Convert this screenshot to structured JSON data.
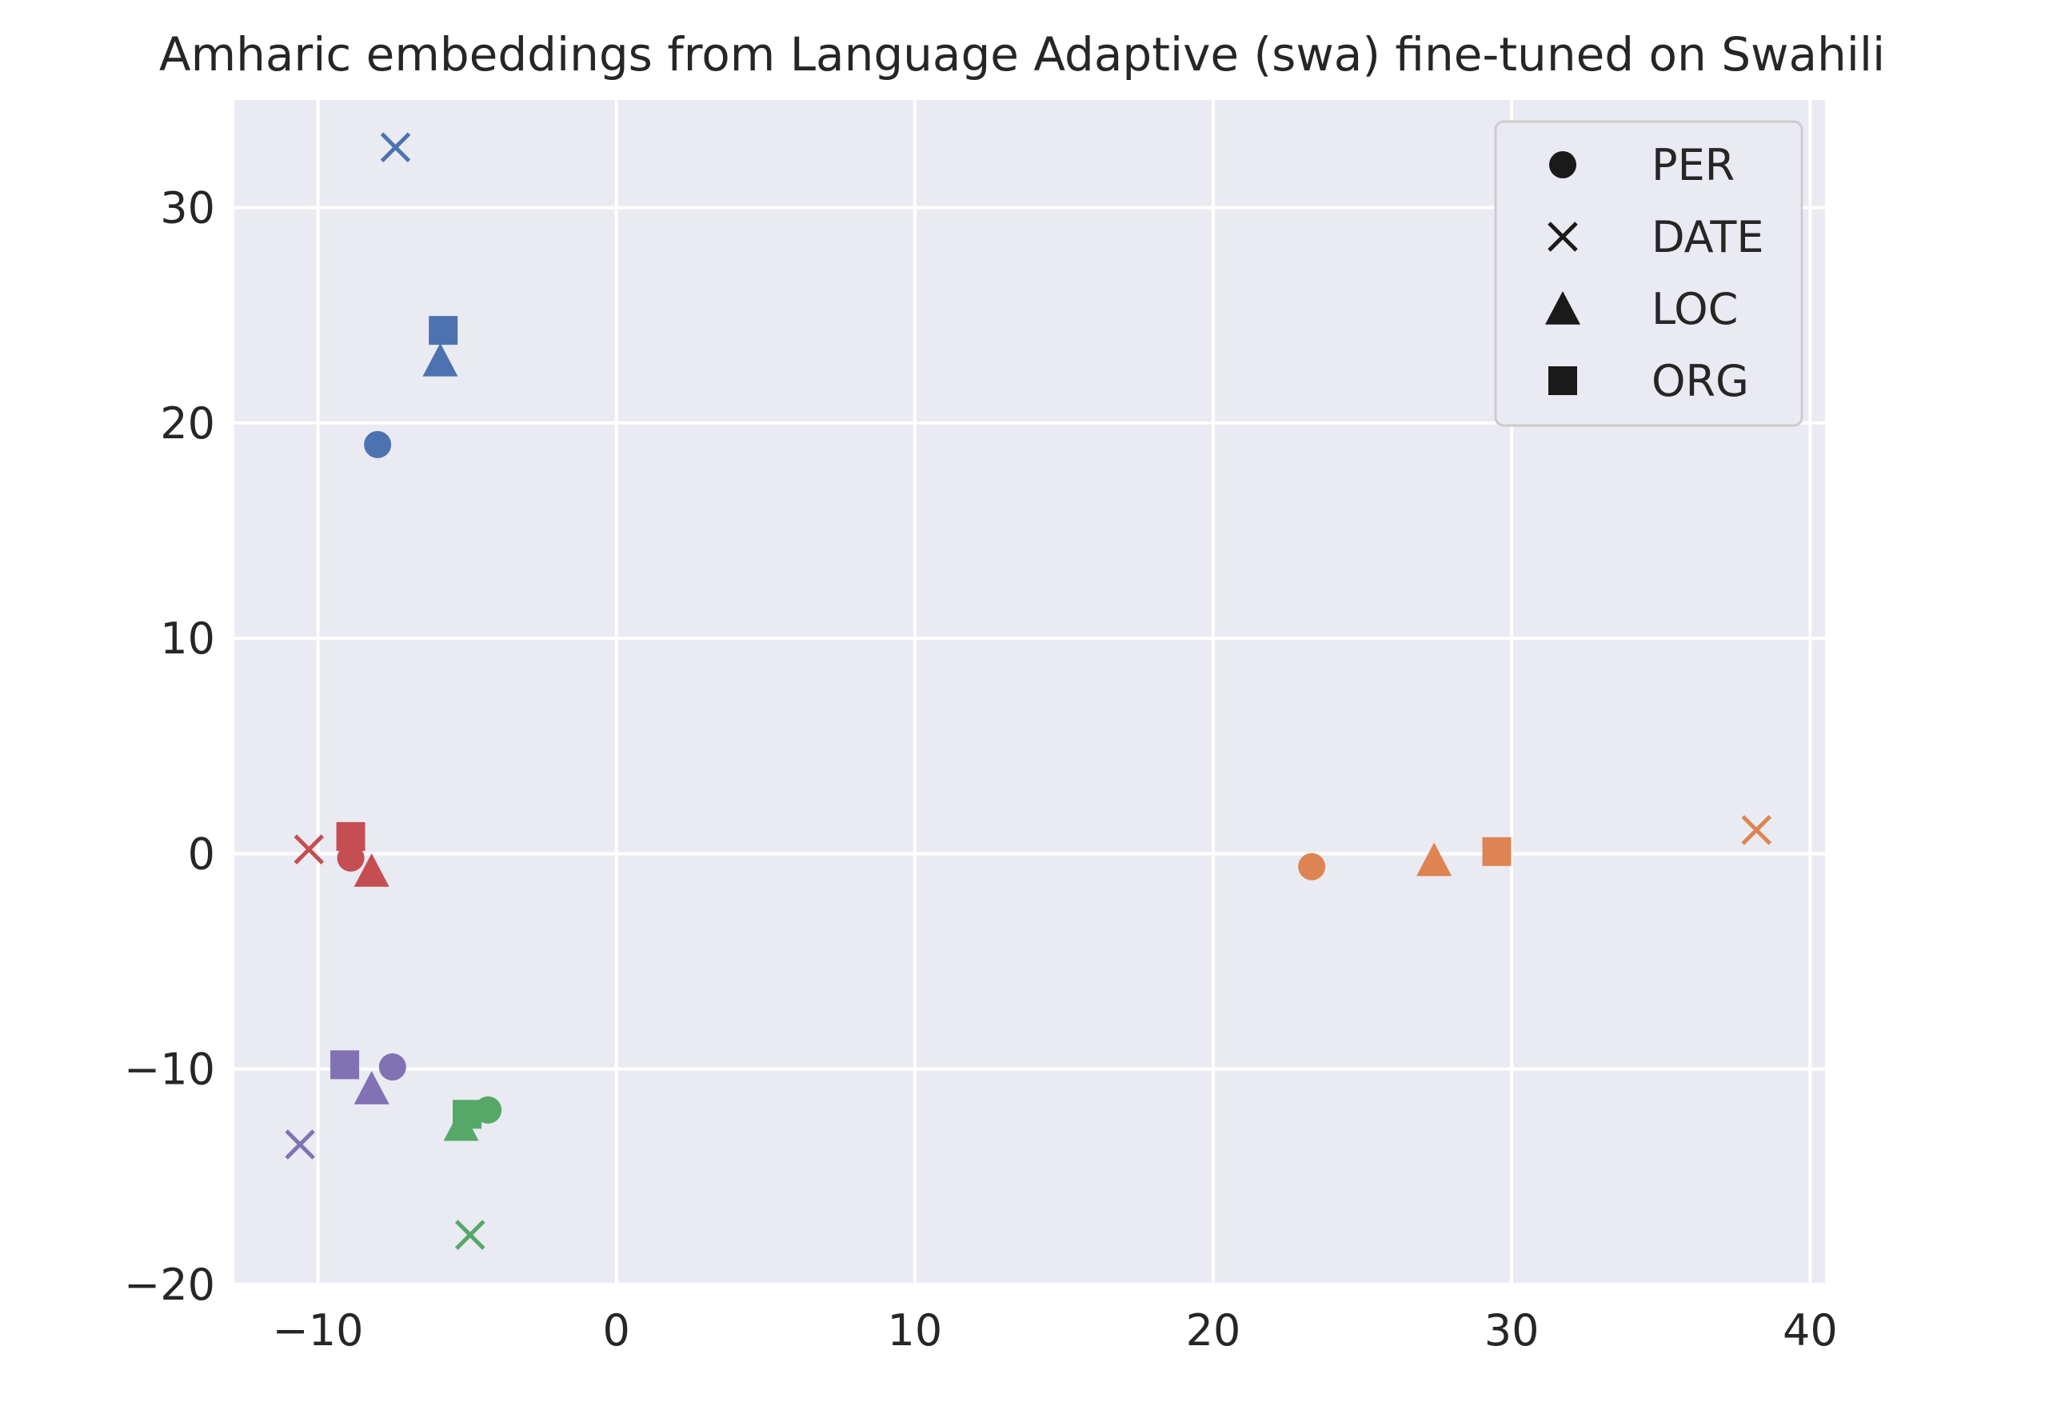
{
  "chart_data": {
    "type": "scatter",
    "title": "Amharic embeddings from Language Adaptive (swa) fine-tuned on Swahili",
    "xlabel": "",
    "ylabel": "",
    "xlim": [
      -12.8,
      40.5
    ],
    "ylim": [
      -20,
      35
    ],
    "xticks": [
      -10,
      0,
      10,
      20,
      30,
      40
    ],
    "yticks": [
      -20,
      -10,
      0,
      10,
      20,
      30
    ],
    "grid": true,
    "legend_position": "top-right",
    "legend": [
      {
        "label": "PER",
        "marker": "circle"
      },
      {
        "label": "DATE",
        "marker": "x"
      },
      {
        "label": "LOC",
        "marker": "triangle"
      },
      {
        "label": "ORG",
        "marker": "square"
      }
    ],
    "series": [
      {
        "color": "#4c72b0",
        "points": [
          {
            "marker": "circle",
            "x": -8.0,
            "y": 19.0
          },
          {
            "marker": "x",
            "x": -7.4,
            "y": 32.8
          },
          {
            "marker": "triangle",
            "x": -5.9,
            "y": 22.9
          },
          {
            "marker": "square",
            "x": -5.8,
            "y": 24.3
          }
        ]
      },
      {
        "color": "#dd8452",
        "points": [
          {
            "marker": "circle",
            "x": 23.3,
            "y": -0.6
          },
          {
            "marker": "x",
            "x": 38.2,
            "y": 1.1
          },
          {
            "marker": "triangle",
            "x": 27.4,
            "y": -0.3
          },
          {
            "marker": "square",
            "x": 29.5,
            "y": 0.1
          }
        ]
      },
      {
        "color": "#55a868",
        "points": [
          {
            "marker": "circle",
            "x": -4.3,
            "y": -11.9
          },
          {
            "marker": "x",
            "x": -4.9,
            "y": -17.7
          },
          {
            "marker": "triangle",
            "x": -5.2,
            "y": -12.6
          },
          {
            "marker": "square",
            "x": -5.0,
            "y": -12.1
          }
        ]
      },
      {
        "color": "#c44e52",
        "points": [
          {
            "marker": "circle",
            "x": -8.9,
            "y": -0.2
          },
          {
            "marker": "x",
            "x": -10.3,
            "y": 0.2
          },
          {
            "marker": "triangle",
            "x": -8.2,
            "y": -0.8
          },
          {
            "marker": "square",
            "x": -8.9,
            "y": 0.8
          }
        ]
      },
      {
        "color": "#8172b3",
        "points": [
          {
            "marker": "circle",
            "x": -7.5,
            "y": -9.9
          },
          {
            "marker": "x",
            "x": -10.6,
            "y": -13.5
          },
          {
            "marker": "triangle",
            "x": -8.2,
            "y": -10.9
          },
          {
            "marker": "square",
            "x": -9.1,
            "y": -9.8
          }
        ]
      }
    ]
  },
  "colors": {
    "plot_background": "#eaeaf2",
    "grid": "#ffffff",
    "text": "#262626",
    "legend_marker": "#1a1a1a"
  }
}
